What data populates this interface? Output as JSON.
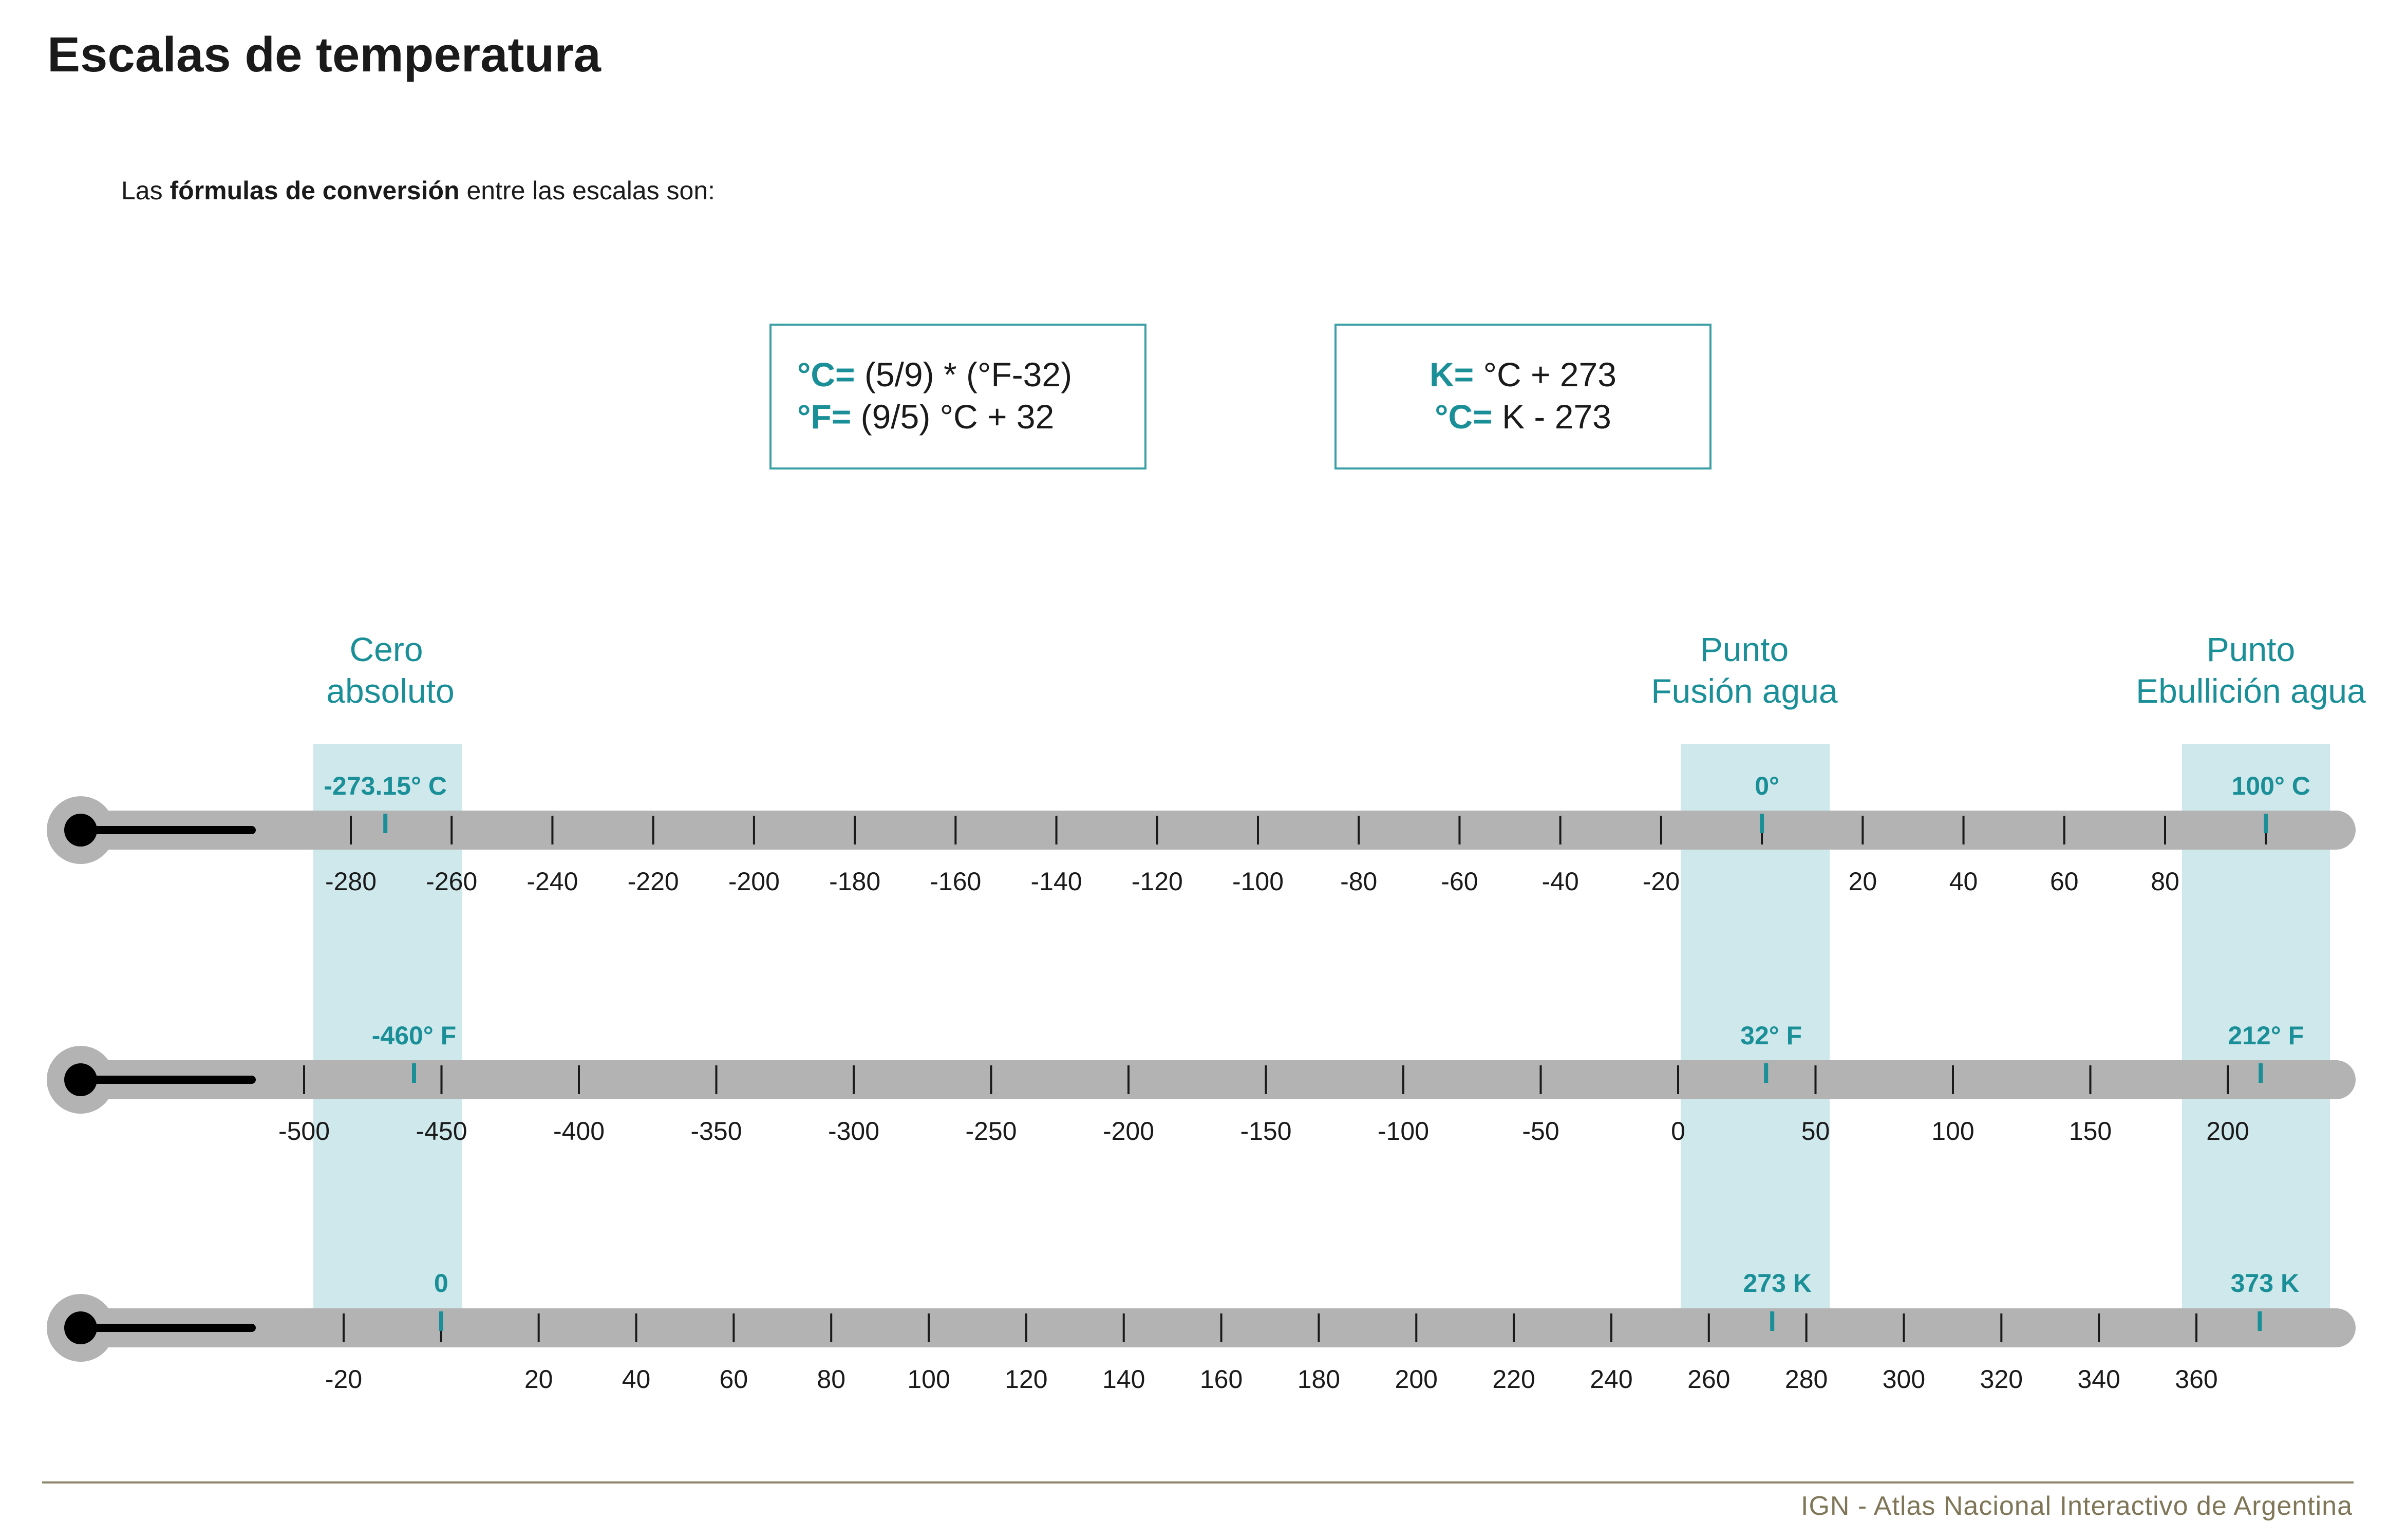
{
  "header": {
    "title": "Escalas de temperatura"
  },
  "intro": {
    "prefix": "Las ",
    "bold": "fórmulas de conversión",
    "suffix": " entre las escalas son:"
  },
  "formulas": [
    {
      "lines": [
        {
          "key": "°C=",
          "expr": " (5/9) * (°F-32)"
        },
        {
          "key": "°F=",
          "expr": " (9/5) °C + 32"
        }
      ]
    },
    {
      "lines": [
        {
          "key": "K=",
          "expr": " °C + 273"
        },
        {
          "key": "°C=",
          "expr": " K - 273"
        }
      ]
    }
  ],
  "markers": [
    {
      "id": "zero",
      "title": [
        "Cero",
        "absoluto"
      ]
    },
    {
      "id": "melt",
      "title": [
        "Punto",
        "Fusión agua"
      ]
    },
    {
      "id": "boil",
      "title": [
        "Punto",
        "Ebullición agua"
      ]
    }
  ],
  "colors": {
    "accent": "#1a8f98",
    "band": "#cfe8ec",
    "bar": "#b3b3b3",
    "bulb": "#000000",
    "footer": "#7f7658"
  },
  "icons": [
    "thermometer-bulb-icon"
  ],
  "scales": [
    {
      "id": "celsius",
      "ticks": [
        -280,
        -260,
        -240,
        -220,
        -200,
        -180,
        -160,
        -140,
        -120,
        -100,
        -80,
        -60,
        -40,
        -20,
        0,
        20,
        40,
        60,
        80,
        100
      ],
      "labels": [
        -280,
        -260,
        -240,
        -220,
        -200,
        -180,
        -160,
        -140,
        -120,
        -100,
        -80,
        -60,
        -40,
        -20,
        20,
        40,
        60,
        80
      ],
      "refs": [
        {
          "value": -273.15,
          "label": "-273.15° C"
        },
        {
          "value": 0,
          "label": "0°"
        },
        {
          "value": 100,
          "label": "100° C"
        }
      ]
    },
    {
      "id": "fahrenheit",
      "ticks": [
        -500,
        -450,
        -400,
        -350,
        -300,
        -250,
        -200,
        -150,
        -100,
        -50,
        0,
        50,
        100,
        150,
        200
      ],
      "labels": [
        -500,
        -450,
        -400,
        -350,
        -300,
        -250,
        -200,
        -150,
        -100,
        -50,
        0,
        50,
        100,
        150,
        200
      ],
      "refs": [
        {
          "value": -460,
          "label": "-460° F"
        },
        {
          "value": 32,
          "label": "32° F"
        },
        {
          "value": 212,
          "label": "212° F"
        }
      ]
    },
    {
      "id": "kelvin",
      "ticks": [
        -20,
        0,
        20,
        40,
        60,
        80,
        100,
        120,
        140,
        160,
        180,
        200,
        220,
        240,
        260,
        280,
        300,
        320,
        340,
        360
      ],
      "labels": [
        -20,
        20,
        40,
        60,
        80,
        100,
        120,
        140,
        160,
        180,
        200,
        220,
        240,
        260,
        280,
        300,
        320,
        340,
        360
      ],
      "refs": [
        {
          "value": 0,
          "label": "0"
        },
        {
          "value": 273,
          "label": "273 K"
        },
        {
          "value": 373,
          "label": "373 K"
        }
      ]
    }
  ],
  "footer": {
    "credit": "IGN - Atlas Nacional Interactivo de Argentina"
  }
}
